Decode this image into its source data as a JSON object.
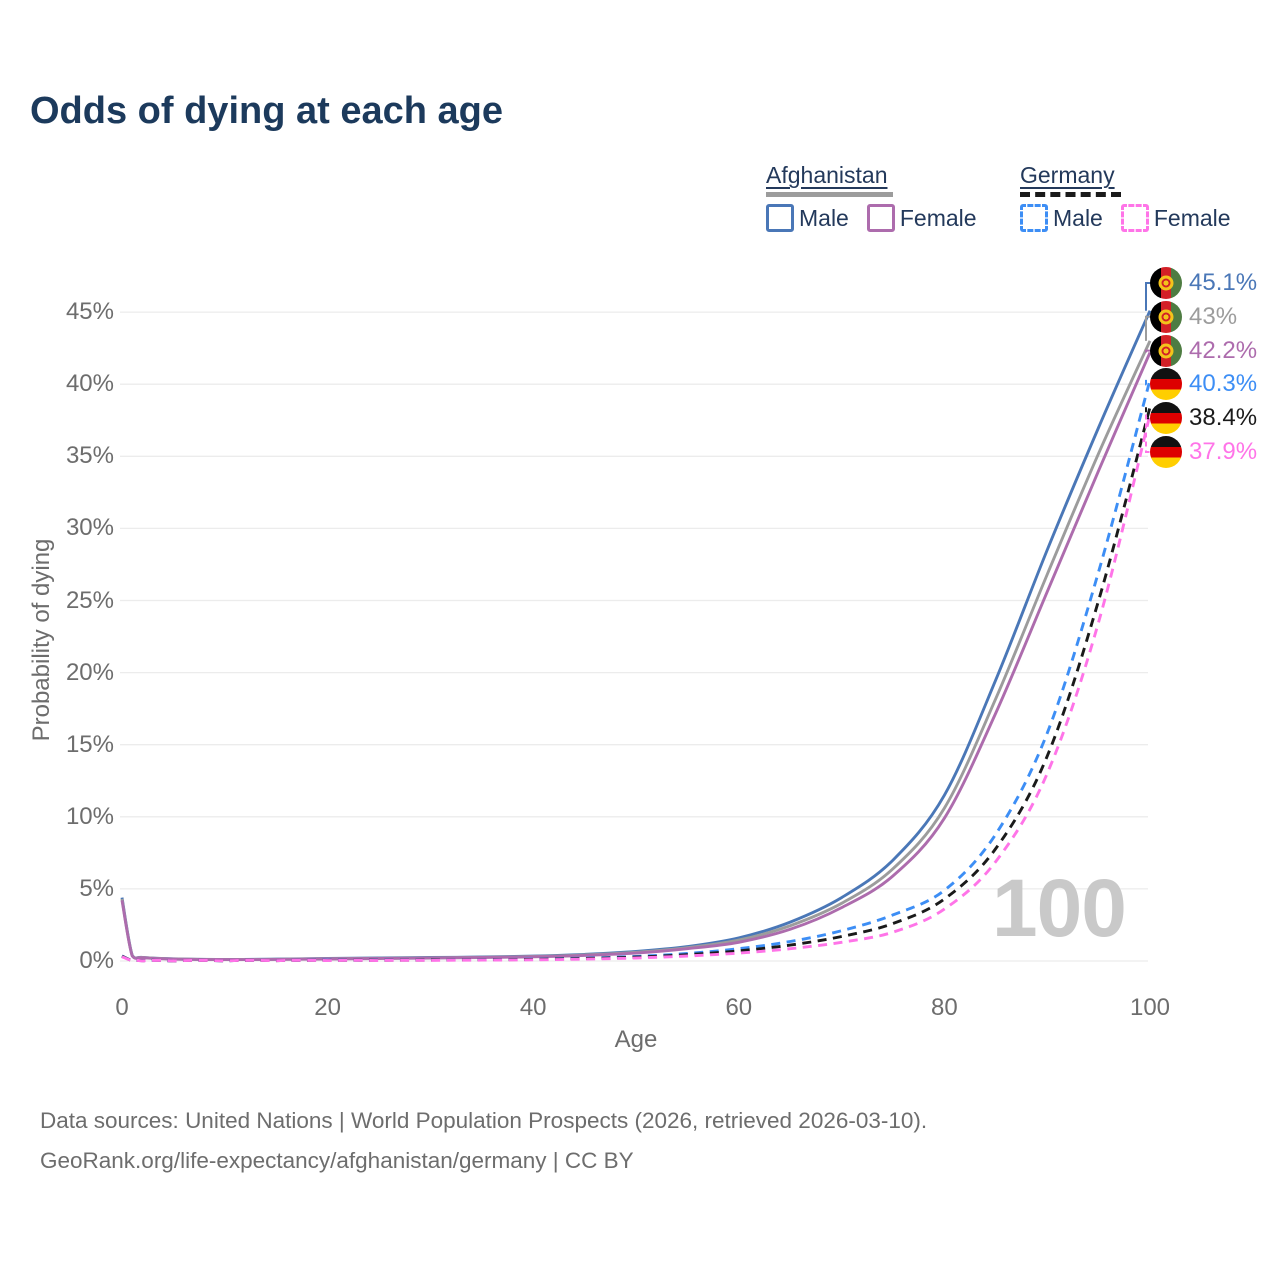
{
  "title": "Odds of dying at each age",
  "legend": {
    "groups": [
      {
        "country": "Afghanistan",
        "line_style": "solid",
        "underline_color": "#9c9c9c",
        "items": [
          {
            "label": "Male",
            "color": "#4a77b7"
          },
          {
            "label": "Female",
            "color": "#ad6cad"
          }
        ]
      },
      {
        "country": "Germany",
        "line_style": "dashed",
        "underline_color": "#1a1a1a",
        "items": [
          {
            "label": "Male",
            "color": "#3d8ef5"
          },
          {
            "label": "Female",
            "color": "#ff74e8"
          }
        ]
      }
    ]
  },
  "chart_data": {
    "type": "line",
    "title": "Odds of dying at each age",
    "xlabel": "Age",
    "ylabel": "Probability of dying",
    "xlim": [
      0,
      100
    ],
    "ylim": [
      0,
      47
    ],
    "x_ticks": [
      "0",
      "20",
      "40",
      "60",
      "80",
      "100"
    ],
    "y_ticks": [
      "0%",
      "5%",
      "10%",
      "15%",
      "20%",
      "25%",
      "30%",
      "35%",
      "40%",
      "45%"
    ],
    "grid": "horizontal",
    "age_cursor": "100",
    "x": [
      0,
      1,
      2,
      5,
      10,
      15,
      20,
      25,
      30,
      35,
      40,
      45,
      50,
      55,
      60,
      65,
      70,
      75,
      80,
      85,
      90,
      95,
      100
    ],
    "series": [
      {
        "name": "Afghanistan Male",
        "country": "Afghanistan",
        "sex": "Male",
        "style": "solid",
        "color": "#4a77b7",
        "end_label": "45.1%",
        "values": [
          4.4,
          0.38,
          0.25,
          0.15,
          0.11,
          0.13,
          0.18,
          0.21,
          0.24,
          0.28,
          0.34,
          0.46,
          0.66,
          1.0,
          1.6,
          2.7,
          4.4,
          7.0,
          11.5,
          19.5,
          28.5,
          37.0,
          45.1
        ]
      },
      {
        "name": "Afghanistan Both sexes",
        "country": "Afghanistan",
        "sex": "Both",
        "style": "solid",
        "color": "#9c9c9c",
        "end_label": "43%",
        "values": [
          4.3,
          0.36,
          0.24,
          0.14,
          0.1,
          0.12,
          0.16,
          0.19,
          0.22,
          0.26,
          0.31,
          0.42,
          0.6,
          0.92,
          1.45,
          2.45,
          4.0,
          6.4,
          10.6,
          18.2,
          26.8,
          35.2,
          43.0
        ]
      },
      {
        "name": "Afghanistan Female",
        "country": "Afghanistan",
        "sex": "Female",
        "style": "solid",
        "color": "#ad6cad",
        "end_label": "42.2%",
        "values": [
          4.2,
          0.34,
          0.23,
          0.13,
          0.1,
          0.11,
          0.14,
          0.17,
          0.2,
          0.24,
          0.29,
          0.39,
          0.55,
          0.85,
          1.3,
          2.2,
          3.7,
          5.9,
          9.9,
          17.2,
          25.6,
          34.0,
          42.2
        ]
      },
      {
        "name": "Germany Male",
        "country": "Germany",
        "sex": "Male",
        "style": "dashed",
        "color": "#3d8ef5",
        "end_label": "40.3%",
        "values": [
          0.35,
          0.03,
          0.02,
          0.01,
          0.01,
          0.03,
          0.06,
          0.06,
          0.07,
          0.09,
          0.13,
          0.2,
          0.32,
          0.52,
          0.85,
          1.35,
          2.1,
          3.2,
          4.9,
          8.8,
          15.8,
          27.0,
          40.3
        ]
      },
      {
        "name": "Germany Both sexes",
        "country": "Germany",
        "sex": "Both",
        "style": "dashed",
        "color": "#1a1a1a",
        "end_label": "38.4%",
        "values": [
          0.33,
          0.03,
          0.02,
          0.01,
          0.01,
          0.02,
          0.04,
          0.05,
          0.06,
          0.08,
          0.11,
          0.17,
          0.27,
          0.44,
          0.7,
          1.1,
          1.7,
          2.6,
          4.3,
          7.8,
          14.2,
          25.0,
          38.4
        ]
      },
      {
        "name": "Germany Female",
        "country": "Germany",
        "sex": "Female",
        "style": "dashed",
        "color": "#ff74e8",
        "end_label": "37.9%",
        "values": [
          0.3,
          0.02,
          0.01,
          0.01,
          0.01,
          0.02,
          0.03,
          0.03,
          0.04,
          0.06,
          0.08,
          0.13,
          0.21,
          0.35,
          0.55,
          0.85,
          1.3,
          2.0,
          3.6,
          6.9,
          13.0,
          23.5,
          37.9
        ]
      }
    ],
    "legend_position": "top-right"
  },
  "watermark": "100",
  "footer": {
    "line1": "Data sources: United Nations | World Population Prospects (2026, retrieved 2026-03-10).",
    "line2": "GeoRank.org/life-expectancy/afghanistan/germany | CC BY"
  }
}
